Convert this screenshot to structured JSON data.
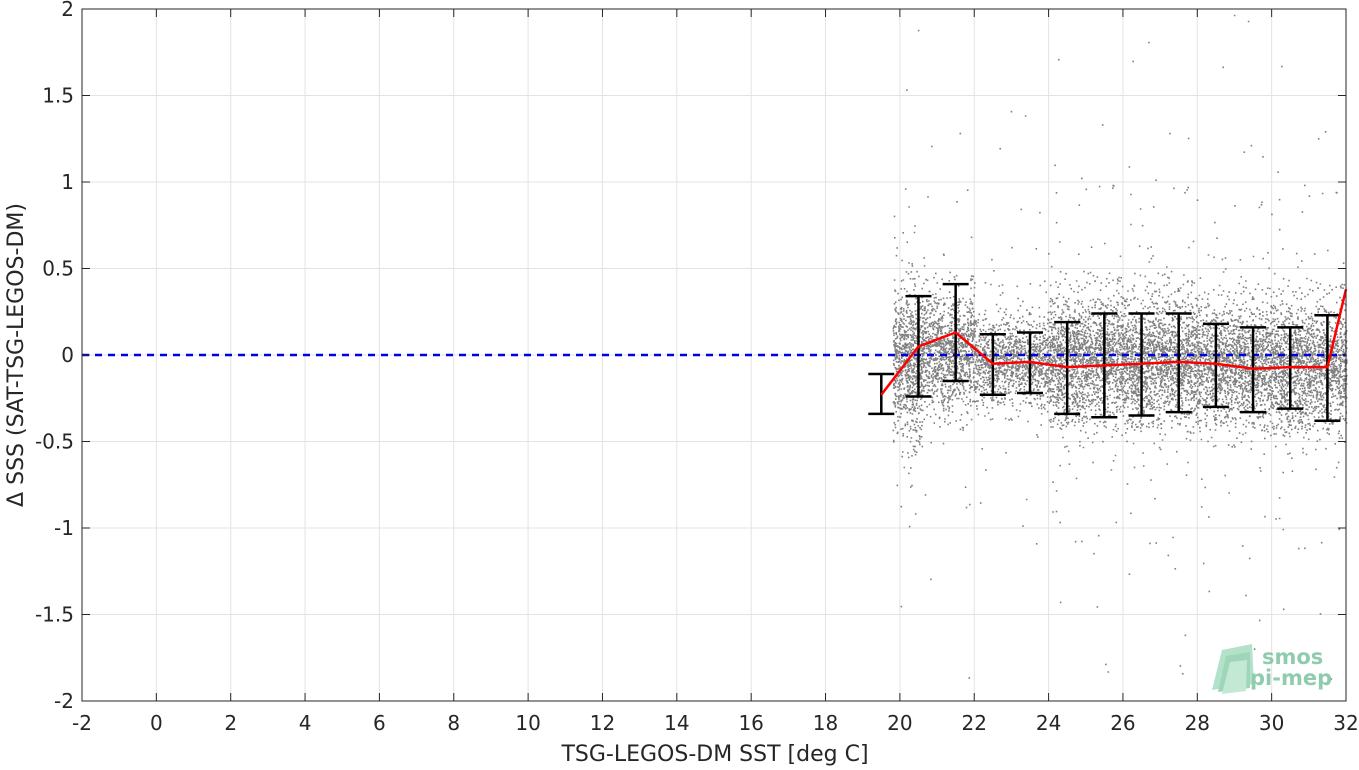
{
  "chart_data": {
    "type": "scatter",
    "title": "",
    "xlabel": "TSG-LEGOS-DM SST [deg C]",
    "ylabel": "Δ SSS (SAT-TSG-LEGOS-DM)",
    "xlim": [
      -2,
      32
    ],
    "ylim": [
      -2,
      2
    ],
    "xticks": [
      -2,
      0,
      2,
      4,
      6,
      8,
      10,
      12,
      14,
      16,
      18,
      20,
      22,
      24,
      26,
      28,
      30,
      32
    ],
    "xtick_labels": [
      "-2",
      "0",
      "2",
      "4",
      "6",
      "8",
      "10",
      "12",
      "14",
      "16",
      "18",
      "20",
      "22",
      "24",
      "26",
      "28",
      "30",
      "32"
    ],
    "yticks": [
      -2,
      -1.5,
      -1,
      -0.5,
      0,
      0.5,
      1,
      1.5,
      2
    ],
    "ytick_labels": [
      "-2",
      "-1.5",
      "-1",
      "-0.5",
      "0",
      "0.5",
      "1",
      "1.5",
      "2"
    ],
    "grid": true,
    "reference_line": {
      "y": 0,
      "style": "dashed",
      "color": "#0000e6"
    },
    "binned_mean": {
      "color": "#ff0000",
      "x": [
        19.5,
        20.5,
        21.5,
        22.5,
        23.5,
        24.5,
        25.5,
        26.5,
        27.5,
        28.5,
        29.5,
        30.5,
        31.5,
        32.0
      ],
      "y": [
        -0.23,
        0.05,
        0.13,
        -0.05,
        -0.04,
        -0.07,
        -0.06,
        -0.05,
        -0.04,
        -0.05,
        -0.08,
        -0.07,
        -0.07,
        0.38
      ]
    },
    "error_bars": {
      "color": "#000000",
      "x": [
        19.5,
        20.5,
        21.5,
        22.5,
        23.5,
        24.5,
        25.5,
        26.5,
        27.5,
        28.5,
        29.5,
        30.5,
        31.5
      ],
      "lower": [
        -0.34,
        -0.24,
        -0.15,
        -0.23,
        -0.22,
        -0.34,
        -0.36,
        -0.35,
        -0.33,
        -0.3,
        -0.33,
        -0.31,
        -0.38
      ],
      "upper": [
        -0.11,
        0.34,
        0.41,
        0.12,
        0.13,
        0.19,
        0.24,
        0.24,
        0.24,
        0.18,
        0.16,
        0.16,
        0.23
      ]
    },
    "scatter_color": "#808080",
    "scatter_clusters": [
      {
        "x_range": [
          19.8,
          20.6
        ],
        "y_center": -0.05,
        "y_spread": 0.35
      },
      {
        "x_range": [
          20.6,
          22.0
        ],
        "y_center": 0.02,
        "y_spread": 0.28
      },
      {
        "x_range": [
          22.0,
          24.0
        ],
        "y_center": -0.03,
        "y_spread": 0.2
      },
      {
        "x_range": [
          24.0,
          26.0
        ],
        "y_center": -0.02,
        "y_spread": 0.3
      },
      {
        "x_range": [
          26.0,
          28.0
        ],
        "y_center": -0.03,
        "y_spread": 0.3
      },
      {
        "x_range": [
          28.0,
          30.0
        ],
        "y_center": -0.05,
        "y_spread": 0.28
      },
      {
        "x_range": [
          30.0,
          32.0
        ],
        "y_center": -0.06,
        "y_spread": 0.3
      }
    ]
  },
  "logo": {
    "line1": "smos",
    "line2": "pi-mep",
    "color": "#7cc3a0"
  }
}
